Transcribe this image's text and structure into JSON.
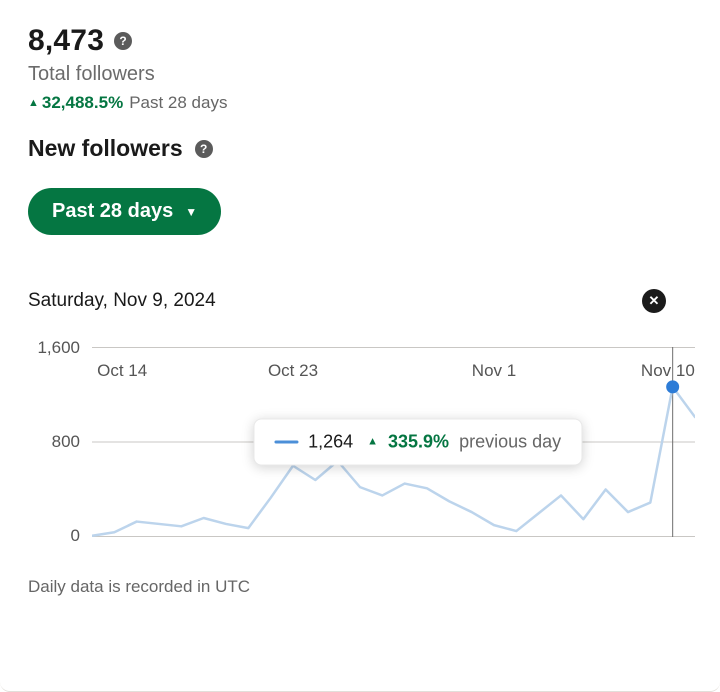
{
  "colors": {
    "brand_green": "#057642",
    "line_blue": "#bcd4ec",
    "dot_blue": "#2d7cd7",
    "swatch_blue": "#4b8fd8",
    "grid_gray": "#c9c7c4",
    "hover_line_gray": "#6e6e6e"
  },
  "header_stats": {
    "value": "8,473",
    "label": "Total followers",
    "trend_arrow": "▲",
    "trend_value": "32,488.5%",
    "trend_period": "Past 28 days",
    "help_icon": "?"
  },
  "section": {
    "title": "New followers",
    "help_icon": "?",
    "range_button_label": "Past 28 days",
    "range_button_caret": "▼"
  },
  "chart_header": {
    "date": "Saturday, Nov 9, 2024",
    "close_icon": "✕"
  },
  "tooltip": {
    "value": "1,264",
    "up_arrow": "▲",
    "change": "335.9%",
    "label": "previous day"
  },
  "footer_note": "Daily data is recorded in UTC",
  "chart_data": {
    "type": "line",
    "title": "New followers",
    "x": [
      "Oct 14",
      "Oct 15",
      "Oct 16",
      "Oct 17",
      "Oct 18",
      "Oct 19",
      "Oct 20",
      "Oct 21",
      "Oct 22",
      "Oct 23",
      "Oct 24",
      "Oct 25",
      "Oct 26",
      "Oct 27",
      "Oct 28",
      "Oct 29",
      "Oct 30",
      "Oct 31",
      "Nov 1",
      "Nov 2",
      "Nov 3",
      "Nov 4",
      "Nov 5",
      "Nov 6",
      "Nov 7",
      "Nov 8",
      "Nov 9",
      "Nov 10"
    ],
    "values": [
      10,
      40,
      130,
      110,
      90,
      160,
      110,
      75,
      330,
      600,
      480,
      640,
      420,
      350,
      450,
      410,
      300,
      210,
      100,
      50,
      200,
      350,
      150,
      400,
      210,
      290,
      1264,
      1010
    ],
    "ylim": [
      0,
      1600
    ],
    "y_ticks": [
      0,
      800,
      1600
    ],
    "y_tick_labels": [
      "0",
      "800",
      "1,600"
    ],
    "x_tick_indices": [
      0,
      9,
      18,
      27
    ],
    "x_tick_labels": [
      "Oct 14",
      "Oct 23",
      "Nov 1",
      "Nov 10"
    ],
    "grid": true,
    "legend_position": "none",
    "highlight": {
      "date": "Saturday, Nov 9, 2024",
      "index": 26,
      "value": 1264,
      "change_vs_previous_day": "335.9%"
    }
  }
}
